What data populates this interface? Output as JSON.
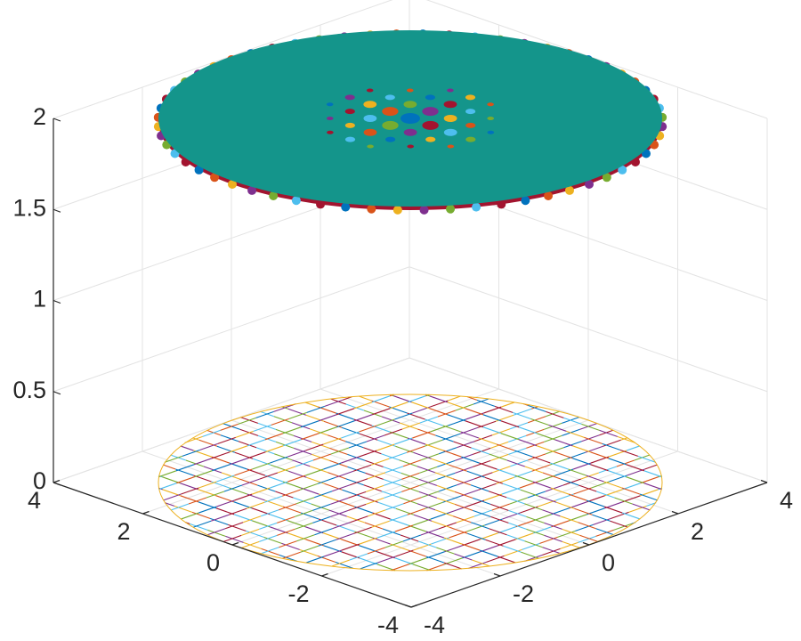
{
  "chart_data": {
    "type": "surface3d",
    "xlim": [
      -4,
      4
    ],
    "xticks": [
      -4,
      -2,
      0,
      2,
      4
    ],
    "ylim": [
      -4,
      4
    ],
    "yticks": [
      -4,
      -2,
      0,
      2,
      4
    ],
    "zlim": [
      0,
      2
    ],
    "zticks": [
      0,
      0.5,
      1,
      1.5,
      2
    ],
    "grid": true
  }
}
